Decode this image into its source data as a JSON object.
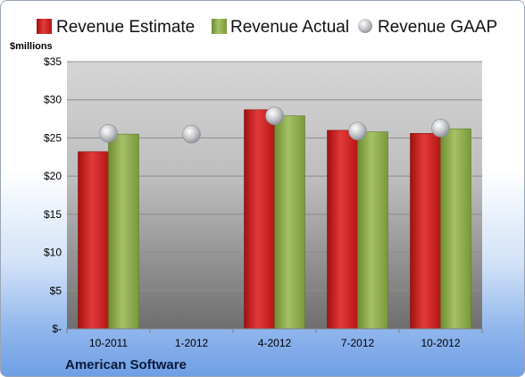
{
  "chart_data": {
    "type": "bar",
    "unit_label": "$millions",
    "footer": "American Software",
    "categories": [
      "10-2011",
      "1-2012",
      "4-2012",
      "7-2012",
      "10-2012"
    ],
    "y_ticks": [
      "$-",
      "$5",
      "$10",
      "$15",
      "$20",
      "$25",
      "$30",
      "$35"
    ],
    "ylim": [
      0,
      35
    ],
    "y_tick_values": [
      0,
      5,
      10,
      15,
      20,
      25,
      30,
      35
    ],
    "grid": true,
    "legend_position": "top",
    "series": [
      {
        "name": "Revenue Estimate",
        "kind": "bar",
        "color": "#cc1f1f",
        "values": [
          23.2,
          null,
          28.7,
          26.0,
          25.6
        ]
      },
      {
        "name": "Revenue Actual",
        "kind": "bar",
        "color": "#8aa84a",
        "values": [
          25.5,
          null,
          27.9,
          25.8,
          26.2
        ]
      },
      {
        "name": "Revenue GAAP",
        "kind": "marker",
        "color": "#b9bcc2",
        "values": [
          25.6,
          25.5,
          27.9,
          25.9,
          26.3
        ]
      }
    ]
  }
}
